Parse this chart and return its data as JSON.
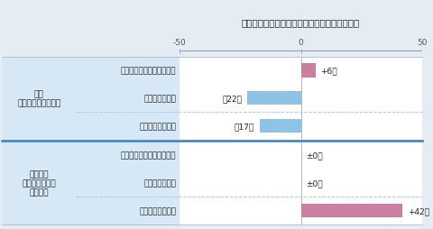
{
  "title": "他チャネル併用有無と満足度（平均点）との差",
  "title_bg": "#F5A623",
  "title_color": "#222222",
  "xlim": [
    -50,
    50
  ],
  "xticks": [
    -50,
    0,
    50
  ],
  "groups": [
    {
      "group_label": "全体\n（全体平均との差）",
      "bg_color": "#D6E8F5",
      "rows": [
        {
          "label": "コールセンター以外利用者",
          "value": 6,
          "color": "#C97FA0",
          "text": "+6点",
          "text_side": "right"
        },
        {
          "label": "他チャネル併用",
          "value": -22,
          "color": "#8EC3E6",
          "text": "－22点",
          "text_side": "left"
        },
        {
          "label": "ホームページ併用",
          "value": -17,
          "color": "#8EC3E6",
          "text": "－17点",
          "text_side": "left"
        }
      ],
      "divider_after": [
        1
      ]
    },
    {
      "group_label": "証券会社\n（証券会社平均\nとの差）",
      "bg_color": "#D6E8F5",
      "rows": [
        {
          "label": "コールセンター以外利用者",
          "value": 0,
          "color": null,
          "text": "±0点",
          "text_side": "right"
        },
        {
          "label": "他チャネル併用",
          "value": 0,
          "color": null,
          "text": "±0点",
          "text_side": "right"
        },
        {
          "label": "ホームページ併用",
          "value": 42,
          "color": "#C97FA0",
          "text": "+42点",
          "text_side": "right"
        }
      ],
      "divider_after": [
        1
      ]
    }
  ],
  "outer_bg": "#E4ECF4",
  "group_divider_color": "#3A7FC1",
  "row_divider_color": "#AACCEE",
  "font_size_title": 7.5,
  "font_size_labels": 6.2,
  "font_size_ticks": 6.5,
  "font_size_bar_text": 6.5,
  "font_size_group": 6.5
}
